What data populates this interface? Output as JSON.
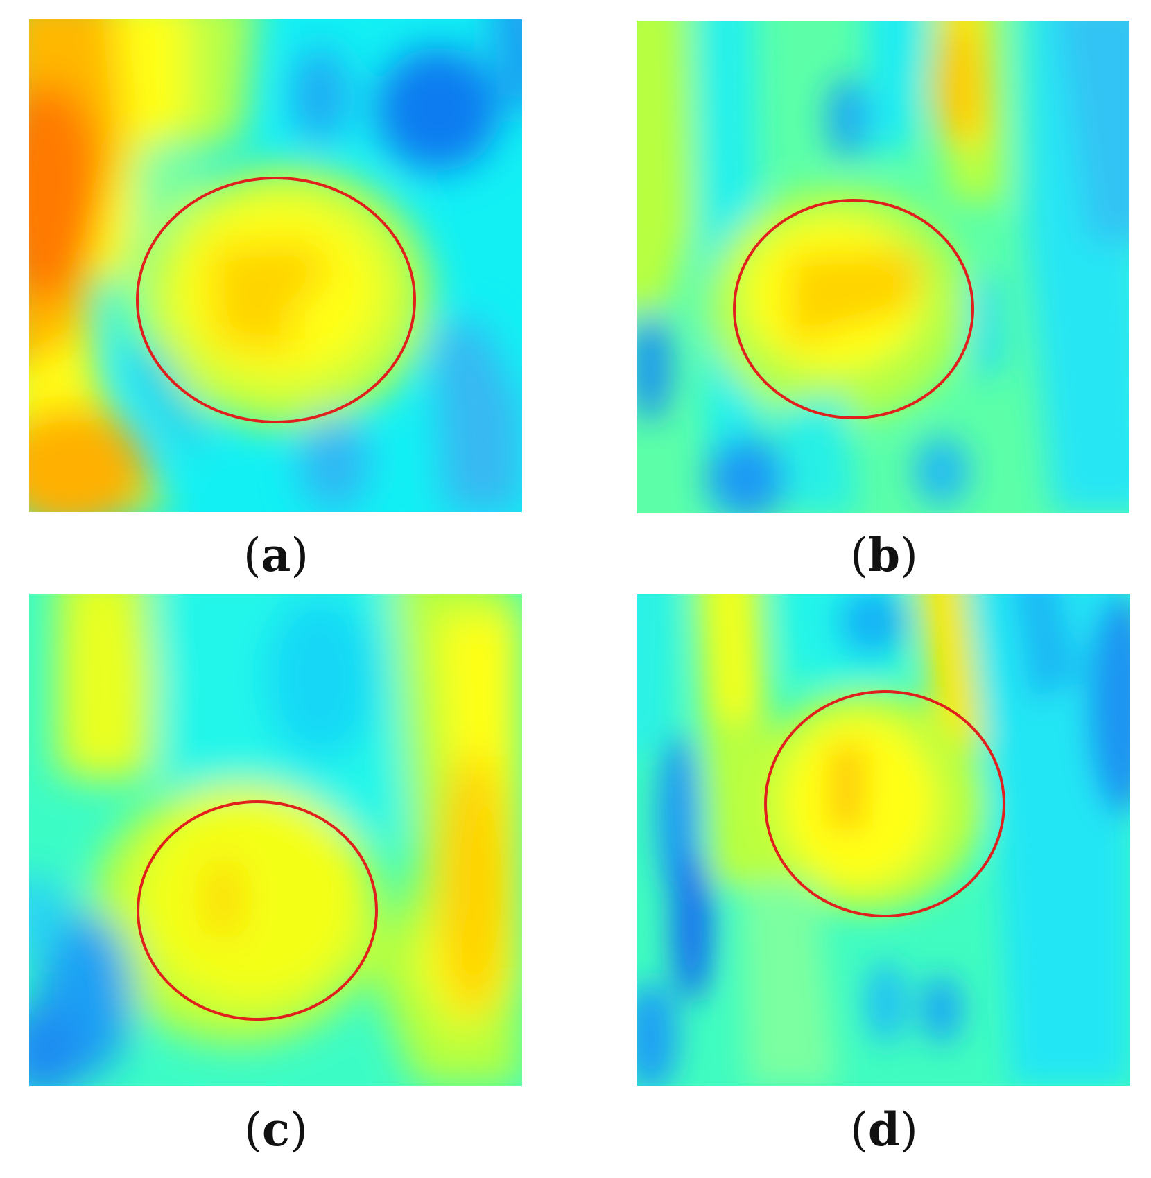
{
  "panels": [
    {
      "id": "a",
      "caption": "a",
      "marker_color": "#e0201c"
    },
    {
      "id": "b",
      "caption": "b",
      "marker_color": "#e0201c"
    },
    {
      "id": "c",
      "caption": "c",
      "marker_color": "#e0201c"
    },
    {
      "id": "d",
      "caption": "d",
      "marker_color": "#e0201c"
    }
  ],
  "colormap": "jet",
  "colors": {
    "deep_blue": "#0a6cf0",
    "cyan": "#12f5f2",
    "green": "#5cffa8",
    "yellow": "#ffff14",
    "orange": "#ff9a00"
  }
}
